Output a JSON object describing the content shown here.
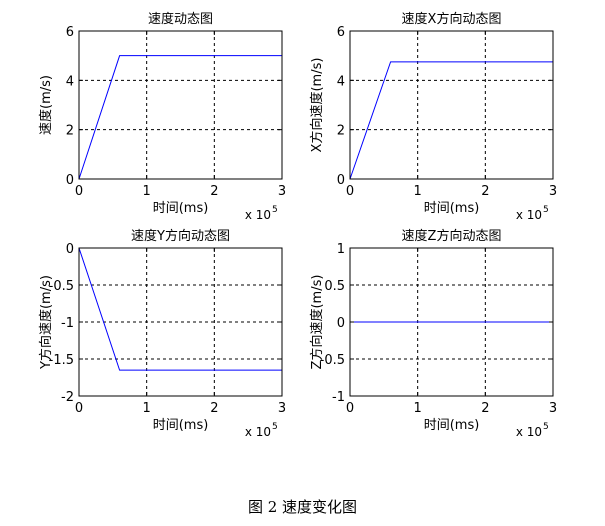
{
  "caption": "图 2 速度变化图",
  "chart_data": [
    {
      "type": "line",
      "title": "速度动态图",
      "xlabel": "时间(ms)",
      "ylabel": "速度(m/s)",
      "x_exponent_base": "x 10",
      "x_exponent_power": "5",
      "xlim": [
        0,
        3
      ],
      "ylim": [
        0,
        6
      ],
      "xticks": [
        0,
        1,
        2,
        3
      ],
      "xtick_labels": [
        "0",
        "1",
        "2",
        "3"
      ],
      "yticks": [
        0,
        2,
        4,
        6
      ],
      "ytick_labels": [
        "0",
        "2",
        "4",
        "6"
      ],
      "grid": true,
      "line_color": "#0000ff",
      "series": [
        {
          "x": [
            0,
            0.6,
            3
          ],
          "y": [
            0,
            5,
            5
          ]
        }
      ]
    },
    {
      "type": "line",
      "title": "速度X方向动态图",
      "xlabel": "时间(ms)",
      "ylabel": "X方向速度(m/s)",
      "x_exponent_base": "x 10",
      "x_exponent_power": "5",
      "xlim": [
        0,
        3
      ],
      "ylim": [
        0,
        6
      ],
      "xticks": [
        0,
        1,
        2,
        3
      ],
      "xtick_labels": [
        "0",
        "1",
        "2",
        "3"
      ],
      "yticks": [
        0,
        2,
        4,
        6
      ],
      "ytick_labels": [
        "0",
        "2",
        "4",
        "6"
      ],
      "grid": true,
      "line_color": "#0000ff",
      "series": [
        {
          "x": [
            0,
            0.6,
            3
          ],
          "y": [
            0,
            4.75,
            4.75
          ]
        }
      ]
    },
    {
      "type": "line",
      "title": "速度Y方向动态图",
      "xlabel": "时间(ms)",
      "ylabel": "Y方向速度(m/s)",
      "x_exponent_base": "x 10",
      "x_exponent_power": "5",
      "xlim": [
        0,
        3
      ],
      "ylim": [
        -2,
        0
      ],
      "xticks": [
        0,
        1,
        2,
        3
      ],
      "xtick_labels": [
        "0",
        "1",
        "2",
        "3"
      ],
      "yticks": [
        -2,
        -1.5,
        -1,
        -0.5,
        0
      ],
      "ytick_labels": [
        "-2",
        "-1.5",
        "-1",
        "-0.5",
        "0"
      ],
      "grid": true,
      "line_color": "#0000ff",
      "series": [
        {
          "x": [
            0,
            0.6,
            3
          ],
          "y": [
            0,
            -1.65,
            -1.65
          ]
        }
      ]
    },
    {
      "type": "line",
      "title": "速度Z方向动态图",
      "xlabel": "时间(ms)",
      "ylabel": "Z方向速度(m/s)",
      "x_exponent_base": "x 10",
      "x_exponent_power": "5",
      "xlim": [
        0,
        3
      ],
      "ylim": [
        -1,
        1
      ],
      "xticks": [
        0,
        1,
        2,
        3
      ],
      "xtick_labels": [
        "0",
        "1",
        "2",
        "3"
      ],
      "yticks": [
        -1,
        -0.5,
        0,
        0.5,
        1
      ],
      "ytick_labels": [
        "-1",
        "-0.5",
        "0",
        "0.5",
        "1"
      ],
      "grid": true,
      "line_color": "#0000ff",
      "series": [
        {
          "x": [
            0,
            3
          ],
          "y": [
            0,
            0
          ]
        }
      ]
    }
  ]
}
